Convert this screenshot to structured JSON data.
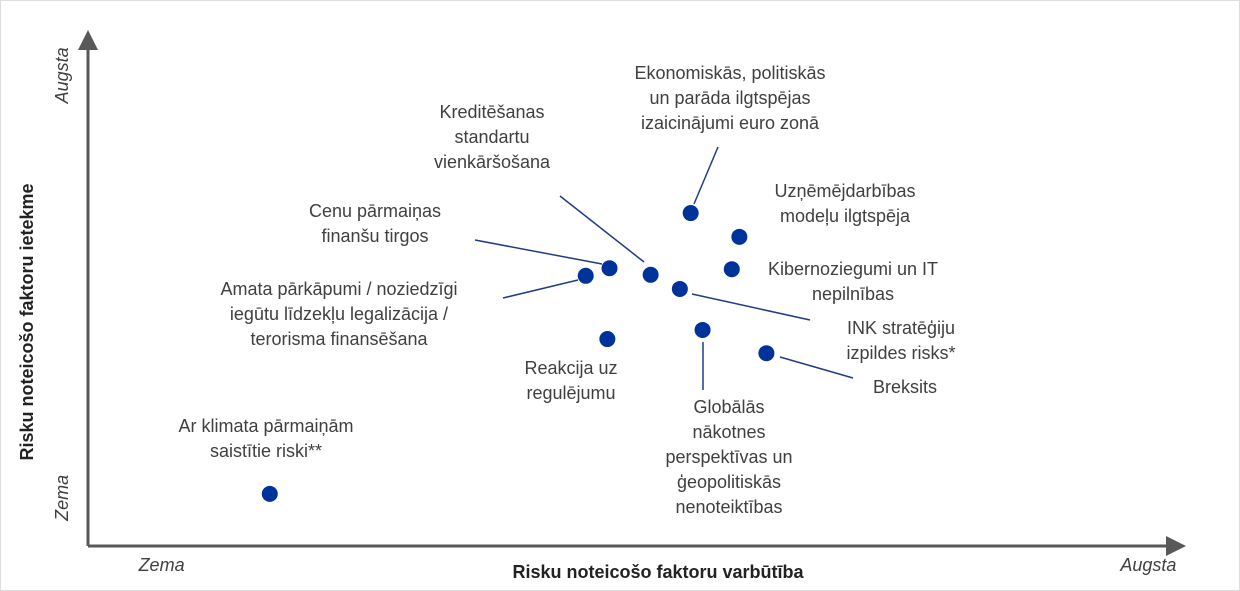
{
  "chart_data": {
    "type": "scatter",
    "xlabel": "Risku noteicošo faktoru varbūtība",
    "ylabel": "Risku noteicošo faktoru ietekme",
    "xlim": [
      0,
      10
    ],
    "ylim": [
      0,
      10
    ],
    "xticks": [
      {
        "value": 0.68,
        "label": "Zema"
      },
      {
        "value": 9.8,
        "label": "Augsta"
      }
    ],
    "yticks": [
      {
        "value": 0.95,
        "label": "Zema"
      },
      {
        "value": 9.3,
        "label": "Augsta"
      }
    ],
    "color": "#003399",
    "points": [
      {
        "label": [
          "Ekonomiskās, politiskās",
          "un parāda ilgtspējas",
          "izaicinājumi euro zonā"
        ],
        "x": 5.57,
        "y": 6.58
      },
      {
        "label": [
          "Uzņēmējdarbības",
          "modeļu ilgtspēja"
        ],
        "x": 6.02,
        "y": 6.11
      },
      {
        "label": [
          "Kibernoziegumi un IT",
          "nepilnības"
        ],
        "x": 5.95,
        "y": 5.47
      },
      {
        "label": [
          "Kreditēšanas",
          "standartu",
          "vienkāršošana"
        ],
        "x": 5.2,
        "y": 5.36
      },
      {
        "label": [
          "Cenu pārmaiņas",
          "finanšu tirgos"
        ],
        "x": 4.82,
        "y": 5.49
      },
      {
        "label": [
          "Amata pārkāpumi / noziedzīgi",
          "iegūtu līdzekļu legalizācija /",
          "terorisma finansēšana"
        ],
        "x": 4.6,
        "y": 5.34
      },
      {
        "label": [
          "INK stratēģiju",
          "izpildes risks*"
        ],
        "x": 5.47,
        "y": 5.08
      },
      {
        "label": [
          "Reakcija uz",
          "regulējumu"
        ],
        "x": 4.8,
        "y": 4.09
      },
      {
        "label": [
          "Globālās",
          "nākotnes",
          "perspektīvas un",
          "ģeopolitiskās",
          "nenoteiktības"
        ],
        "x": 5.68,
        "y": 4.27
      },
      {
        "label": [
          "Breksits"
        ],
        "x": 6.27,
        "y": 3.81
      },
      {
        "label": [
          "Ar klimata pārmaiņām",
          "saistītie riski**"
        ],
        "x": 1.68,
        "y": 1.03
      }
    ]
  }
}
